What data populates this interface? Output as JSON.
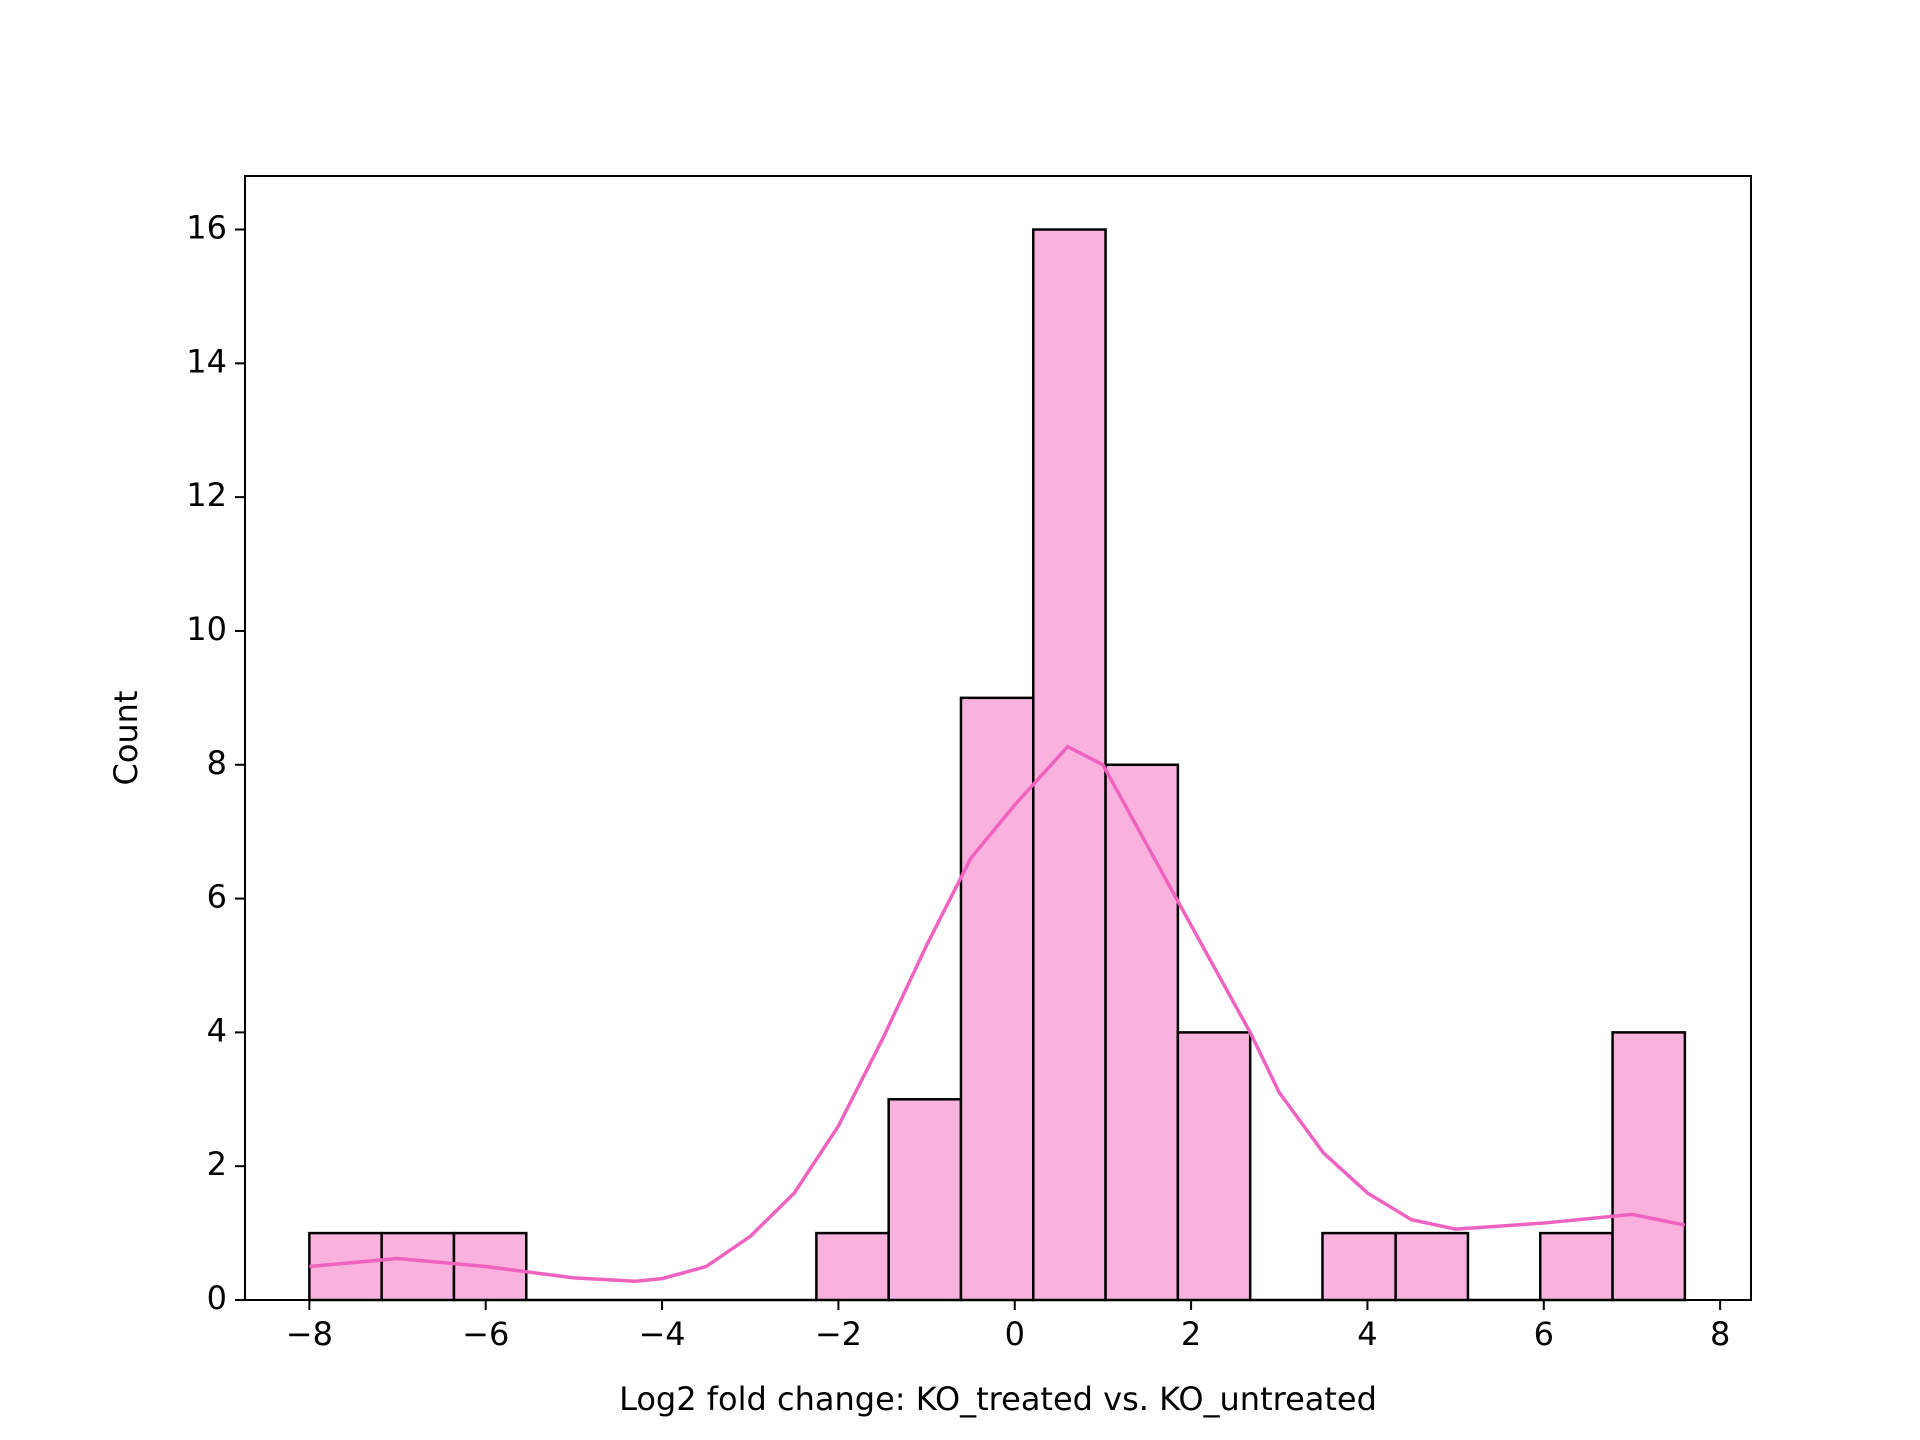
{
  "chart_data": {
    "type": "histogram",
    "x_label": "Log2 fold change: KO_treated vs. KO_untreated",
    "y_label": "Count",
    "bins": [
      -8,
      -7.18,
      -6.36,
      -5.54,
      -4.72,
      -3.89,
      -3.07,
      -2.25,
      -1.43,
      -0.61,
      0.21,
      1.03,
      1.85,
      2.67,
      3.49,
      4.32,
      5.14,
      5.96,
      6.78,
      7.6
    ],
    "values": [
      1,
      1,
      1,
      0,
      0,
      0,
      0,
      1,
      3,
      9,
      16,
      8,
      4,
      0,
      1,
      1,
      0,
      1,
      4
    ],
    "color": "#f9b1dd",
    "edgecolor": "#000000",
    "kde": {
      "color": "#f062c0",
      "x": [
        -8,
        -7,
        -6,
        -5,
        -4.3,
        -4,
        -3.5,
        -3,
        -2.5,
        -2,
        -1.5,
        -1,
        -0.5,
        0,
        0.6,
        1,
        1.5,
        2,
        2.67,
        3,
        3.5,
        4,
        4.5,
        5,
        6,
        7,
        7.6
      ],
      "values": [
        0.5,
        0.62,
        0.5,
        0.33,
        0.28,
        0.32,
        0.5,
        0.95,
        1.6,
        2.6,
        3.9,
        5.3,
        6.6,
        7.4,
        8.27,
        8.0,
        6.8,
        5.6,
        4.0,
        3.1,
        2.2,
        1.6,
        1.2,
        1.06,
        1.15,
        1.28,
        1.12
      ]
    },
    "xlim": [
      -8.73,
      8.35
    ],
    "ylim": [
      0,
      16.8
    ],
    "xticks": [
      {
        "value": -8,
        "label": "−8"
      },
      {
        "value": -6,
        "label": "−6"
      },
      {
        "value": -4,
        "label": "−4"
      },
      {
        "value": -2,
        "label": "−2"
      },
      0,
      2,
      4,
      6,
      8
    ],
    "yticks": [
      0,
      2,
      4,
      6,
      8,
      10,
      12,
      14,
      16
    ]
  }
}
